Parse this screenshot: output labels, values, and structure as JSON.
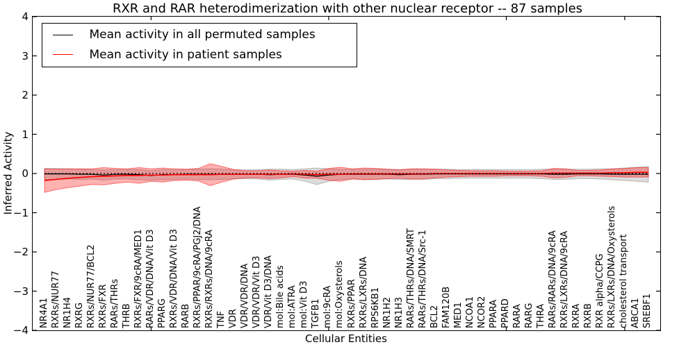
{
  "title": "RXR and RAR heterodimerization with other nuclear receptor -- 87 samples",
  "legend": {
    "items": [
      {
        "label": "Mean activity in all permuted samples",
        "color": "#000000"
      },
      {
        "label": "Mean activity in patient samples",
        "color": "#ff0000"
      }
    ]
  },
  "axes": {
    "ylabel": "Inferred Activity",
    "xlabel": "Cellular Entities",
    "ylim": [
      -4,
      4
    ],
    "yticks": [
      4,
      3,
      2,
      1,
      0,
      -1,
      -2,
      -3,
      -4
    ],
    "ytick_labels": [
      "4",
      "3",
      "2",
      "1",
      "0",
      "−1",
      "−2",
      "−3",
      "−4"
    ],
    "xlim": [
      0,
      53
    ],
    "xtick_marks": [
      10,
      25,
      40,
      50
    ],
    "grid": false,
    "legend_position": "upper left"
  },
  "colors": {
    "permuted_line": "#000000",
    "patient_line": "#ff0000",
    "permuted_band_fill": "rgba(128,128,128,0.28)",
    "permuted_band_edge": "rgba(128,128,128,0.5)",
    "patient_band_fill": "rgba(255,0,0,0.30)",
    "patient_band_edge": "rgba(255,0,0,0.5)",
    "zero_line": "#000000",
    "frame": "#000000"
  },
  "chart_data": {
    "type": "line",
    "title": "RXR and RAR heterodimerization with other nuclear receptor -- 87 samples",
    "xlabel": "Cellular Entities",
    "ylabel": "Inferred Activity",
    "ylim": [
      -4,
      4
    ],
    "zero_line": {
      "style": "dashed",
      "y": 0
    },
    "categories": [
      "NR4A1",
      "RXRs/NUR77",
      "NR1H4",
      "RXRG",
      "RXRs/NUR77/BCL2",
      "RXRs/FXR",
      "RARs/THRs",
      "THRB",
      "RXRs/FXR/9cRA/MED1",
      "RARs/VDR/DNA/Vit D3",
      "PPARG",
      "RXRs/VDR/DNA/Vit D3",
      "RARB",
      "RXRs/PPAR/9cRA/PGJ2/DNA",
      "RXRs/RXRs/DNA/9cRA",
      "TNF",
      "VDR",
      "VDR/VDR/DNA",
      "VDR/VDR/Vit D3",
      "VDR/Vit D3/DNA",
      "mol:Bile acids",
      "mol:ATRA",
      "mol:Vit D3",
      "TGFB1",
      "mol:9cRA",
      "mol:Oxysterols",
      "RXRs/PPAR",
      "RXRs/LXRs/DNA",
      "RPS6KB1",
      "NR1H2",
      "NR1H3",
      "RARs/THRs/DNA/SMRT",
      "RARs/THRs/DNA/Src-1",
      "BCL2",
      "FAM120B",
      "MED1",
      "NCOA1",
      "NCOR2",
      "PPARA",
      "PPARD",
      "RARA",
      "RARG",
      "THRA",
      "RARs/RARs/DNA/9cRA",
      "RXRs/LXRs/DNA/9cRA",
      "RXRA",
      "RXRB",
      "RXR alpha/CCPG",
      "RXRs/LXRs/DNA/Oxysterols",
      "cholesterol transport",
      "ABCA1",
      "SREBF1"
    ],
    "series": [
      {
        "name": "Mean activity in all permuted samples",
        "color": "#000000",
        "mean": [
          -0.01,
          -0.01,
          -0.01,
          -0.02,
          -0.02,
          -0.04,
          -0.02,
          -0.02,
          -0.03,
          -0.05,
          -0.03,
          -0.03,
          -0.02,
          -0.02,
          -0.02,
          -0.02,
          -0.02,
          -0.02,
          -0.02,
          -0.03,
          -0.02,
          -0.02,
          -0.04,
          -0.07,
          -0.04,
          -0.02,
          -0.02,
          -0.02,
          -0.02,
          -0.02,
          -0.03,
          -0.02,
          -0.02,
          -0.01,
          -0.01,
          -0.01,
          -0.01,
          -0.01,
          -0.01,
          -0.01,
          -0.01,
          -0.01,
          -0.01,
          -0.02,
          -0.02,
          -0.01,
          -0.01,
          -0.01,
          -0.02,
          -0.02,
          -0.02,
          -0.02
        ],
        "std": [
          0.14,
          0.14,
          0.13,
          0.13,
          0.12,
          0.13,
          0.12,
          0.12,
          0.13,
          0.12,
          0.13,
          0.12,
          0.12,
          0.13,
          0.14,
          0.13,
          0.12,
          0.11,
          0.12,
          0.14,
          0.13,
          0.12,
          0.16,
          0.21,
          0.16,
          0.13,
          0.12,
          0.13,
          0.13,
          0.12,
          0.12,
          0.13,
          0.13,
          0.12,
          0.12,
          0.11,
          0.11,
          0.11,
          0.11,
          0.11,
          0.11,
          0.11,
          0.12,
          0.13,
          0.13,
          0.12,
          0.12,
          0.13,
          0.14,
          0.16,
          0.18,
          0.2
        ]
      },
      {
        "name": "Mean activity in patient samples",
        "color": "#ff0000",
        "mean": [
          -0.18,
          -0.15,
          -0.12,
          -0.1,
          -0.08,
          -0.07,
          -0.06,
          -0.05,
          -0.05,
          -0.04,
          -0.04,
          -0.03,
          -0.03,
          -0.03,
          -0.03,
          -0.02,
          -0.02,
          -0.02,
          -0.02,
          -0.02,
          -0.02,
          -0.01,
          -0.02,
          -0.03,
          -0.02,
          -0.02,
          -0.01,
          -0.01,
          -0.01,
          -0.01,
          -0.01,
          -0.01,
          -0.01,
          0.0,
          0.0,
          0.0,
          0.0,
          0.0,
          0.0,
          0.0,
          0.0,
          0.0,
          0.0,
          0.01,
          0.01,
          0.01,
          0.01,
          0.01,
          0.02,
          0.02,
          0.03,
          0.03
        ],
        "std": [
          0.3,
          0.26,
          0.24,
          0.22,
          0.2,
          0.22,
          0.19,
          0.17,
          0.2,
          0.16,
          0.18,
          0.15,
          0.14,
          0.16,
          0.28,
          0.2,
          0.12,
          0.09,
          0.09,
          0.11,
          0.09,
          0.07,
          0.1,
          0.09,
          0.15,
          0.18,
          0.13,
          0.15,
          0.14,
          0.12,
          0.11,
          0.13,
          0.13,
          0.11,
          0.09,
          0.08,
          0.07,
          0.07,
          0.07,
          0.06,
          0.06,
          0.06,
          0.07,
          0.12,
          0.11,
          0.07,
          0.07,
          0.08,
          0.1,
          0.11,
          0.12,
          0.12
        ]
      }
    ]
  }
}
